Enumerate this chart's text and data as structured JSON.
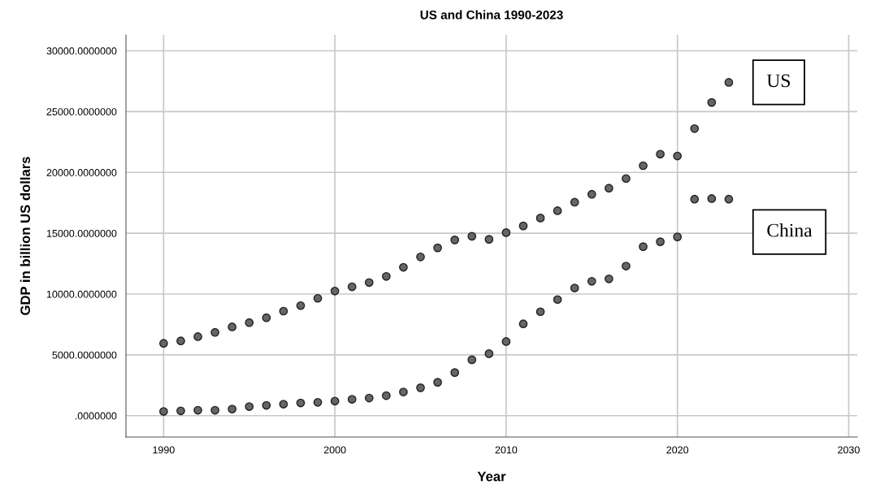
{
  "chart_data": {
    "type": "scatter",
    "title": "US and China 1990-2023",
    "xlabel": "Year",
    "ylabel": "GDP in billion US dollars",
    "x": [
      1990,
      1991,
      1992,
      1993,
      1994,
      1995,
      1996,
      1997,
      1998,
      1999,
      2000,
      2001,
      2002,
      2003,
      2004,
      2005,
      2006,
      2007,
      2008,
      2009,
      2010,
      2011,
      2012,
      2013,
      2014,
      2015,
      2016,
      2017,
      2018,
      2019,
      2020,
      2021,
      2022,
      2023
    ],
    "series": [
      {
        "name": "US",
        "color": "#666666",
        "values": [
          5950,
          6150,
          6500,
          6850,
          7300,
          7650,
          8050,
          8600,
          9050,
          9650,
          10250,
          10600,
          10950,
          11450,
          12200,
          13050,
          13800,
          14450,
          14750,
          14500,
          15050,
          15600,
          16250,
          16850,
          17550,
          18200,
          18700,
          19500,
          20550,
          21500,
          21350,
          23600,
          25750,
          27400
        ]
      },
      {
        "name": "China",
        "color": "#666666",
        "values": [
          350,
          400,
          450,
          450,
          550,
          750,
          850,
          950,
          1050,
          1100,
          1200,
          1350,
          1450,
          1650,
          1950,
          2300,
          2750,
          3550,
          4600,
          5100,
          6100,
          7550,
          8550,
          9550,
          10500,
          11050,
          11250,
          12300,
          13900,
          14300,
          14700,
          17800,
          17850,
          17800
        ]
      }
    ],
    "xlim": [
      1987.8,
      2030.5
    ],
    "ylim": [
      -1750,
      31300
    ],
    "xticks": [
      1990,
      2000,
      2010,
      2020,
      2030
    ],
    "yticks": [
      {
        "value": 0,
        "label": ".0000000"
      },
      {
        "value": 5000,
        "label": "5000.0000000"
      },
      {
        "value": 10000,
        "label": "10000.0000000"
      },
      {
        "value": 15000,
        "label": "15000.0000000"
      },
      {
        "value": 20000,
        "label": "20000.0000000"
      },
      {
        "value": 25000,
        "label": "25000.0000000"
      },
      {
        "value": 30000,
        "label": "30000.0000000"
      }
    ],
    "grid": true,
    "marker": "circle"
  }
}
